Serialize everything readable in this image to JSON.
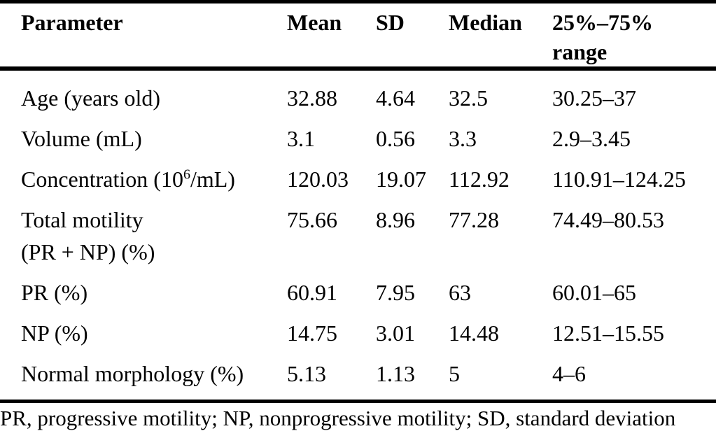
{
  "colors": {
    "background": "#ffffff",
    "text": "#000000",
    "rule": "#000000"
  },
  "table": {
    "header": {
      "parameter": "Parameter",
      "mean": "Mean",
      "sd": "SD",
      "median": "Median",
      "range_line1": "25%–75%",
      "range_line2": "range"
    },
    "rows": [
      {
        "parameter": "Age (years old)",
        "mean": "32.88",
        "sd": "4.64",
        "median": "32.5",
        "range": "30.25–37"
      },
      {
        "parameter": "Volume (mL)",
        "mean": "3.1",
        "sd": "0.56",
        "median": "3.3",
        "range": "2.9–3.45"
      },
      {
        "parameter_prefix": "Concentration (10",
        "parameter_sup": "6",
        "parameter_suffix": "/mL)",
        "mean": "120.03",
        "sd": "19.07",
        "median": "112.92",
        "range": "110.91–124.25"
      },
      {
        "parameter_line1": "Total motility",
        "parameter_line2": "(PR + NP) (%)",
        "mean": "75.66",
        "sd": "8.96",
        "median": "77.28",
        "range": "74.49–80.53"
      },
      {
        "parameter": "PR (%)",
        "mean": "60.91",
        "sd": "7.95",
        "median": "63",
        "range": "60.01–65"
      },
      {
        "parameter": "NP (%)",
        "mean": "14.75",
        "sd": "3.01",
        "median": "14.48",
        "range": "12.51–15.55"
      },
      {
        "parameter": "Normal morphology (%)",
        "mean": "5.13",
        "sd": "1.13",
        "median": "5",
        "range": "4–6"
      }
    ],
    "footnote": "PR, progressive motility; NP, nonprogressive motility; SD, standard deviation"
  }
}
